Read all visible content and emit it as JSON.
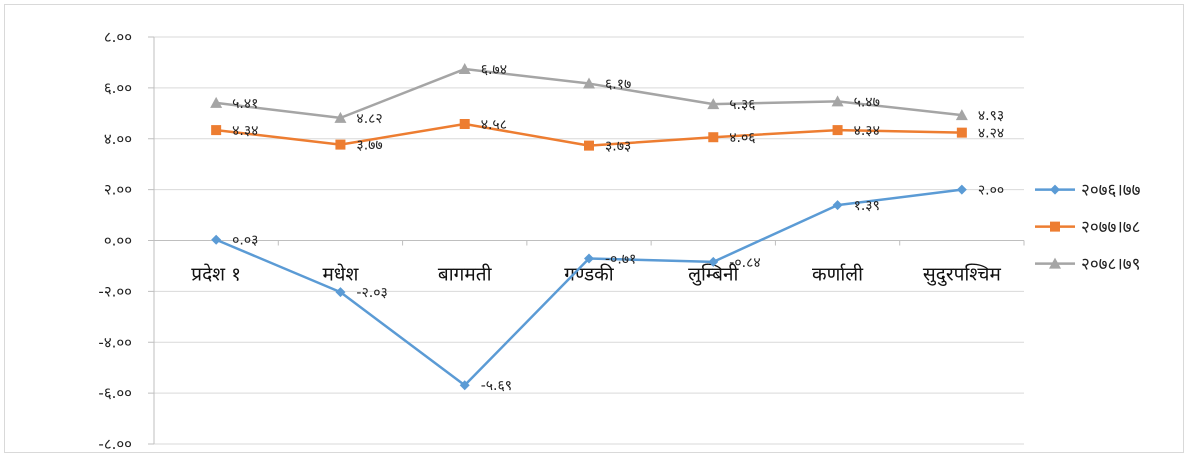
{
  "chart_data": {
    "type": "line",
    "categories": [
      "प्रदेश १",
      "मधेश",
      "बागमती",
      "गण्डकी",
      "लुम्बिनी",
      "कर्णाली",
      "सुदुरपश्चिम"
    ],
    "ylim": [
      -8,
      8
    ],
    "yticks": [
      8,
      6,
      4,
      2,
      0,
      -2,
      -4,
      -6,
      -8
    ],
    "ytick_labels": [
      "८.००",
      "६.००",
      "४.००",
      "२.००",
      "०.००",
      "-२.००",
      "-४.००",
      "-६.००",
      "-८.००"
    ],
    "grid": true,
    "legend_position": "right",
    "series": [
      {
        "name": "२०७६।७७",
        "color": "#5b9bd5",
        "marker": "diamond",
        "values": [
          0.03,
          -2.03,
          -5.69,
          -0.71,
          -0.84,
          1.39,
          2.0
        ],
        "labels": [
          "०.०३",
          "-२.०३",
          "-५.६९",
          "-०.७१",
          "-०.८४",
          "१.३९",
          "२.००"
        ]
      },
      {
        "name": "२०७७।७८",
        "color": "#ed7d31",
        "marker": "square",
        "values": [
          4.34,
          3.77,
          4.58,
          3.73,
          4.06,
          4.34,
          4.24
        ],
        "labels": [
          "४.३४",
          "३.७७",
          "४.५८",
          "३.७३",
          "४.०६",
          "४.३४",
          "४.२४"
        ]
      },
      {
        "name": "२०७८।७९",
        "color": "#a5a5a5",
        "marker": "triangle",
        "values": [
          5.41,
          4.82,
          6.74,
          6.17,
          5.36,
          5.47,
          4.93
        ],
        "labels": [
          "५.४१",
          "४.८२",
          "६.७४",
          "६.१७",
          "५.३६",
          "५.४७",
          "४.९३"
        ]
      }
    ]
  }
}
